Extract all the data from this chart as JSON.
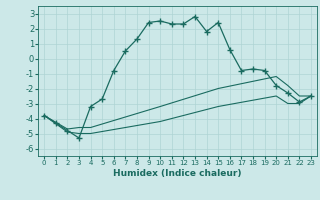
{
  "xlabel": "Humidex (Indice chaleur)",
  "ylabel": "",
  "background_color": "#cce8e8",
  "line_color": "#1a6b60",
  "xlim": [
    -0.5,
    23.5
  ],
  "ylim": [
    -6.5,
    3.5
  ],
  "xticks": [
    0,
    1,
    2,
    3,
    4,
    5,
    6,
    7,
    8,
    9,
    10,
    11,
    12,
    13,
    14,
    15,
    16,
    17,
    18,
    19,
    20,
    21,
    22,
    23
  ],
  "yticks": [
    -6,
    -5,
    -4,
    -3,
    -2,
    -1,
    0,
    1,
    2,
    3
  ],
  "series1_x": [
    0,
    1,
    2,
    3,
    4,
    5,
    6,
    7,
    8,
    9,
    10,
    11,
    12,
    13,
    14,
    15,
    16,
    17,
    18,
    19,
    20,
    21,
    22,
    23
  ],
  "series1_y": [
    -3.8,
    -4.3,
    -4.8,
    -5.3,
    -3.2,
    -2.7,
    -0.8,
    0.5,
    1.3,
    2.4,
    2.5,
    2.3,
    2.3,
    2.8,
    1.8,
    2.4,
    0.6,
    -0.8,
    -0.7,
    -0.8,
    -1.8,
    -2.3,
    -2.9,
    -2.5
  ],
  "series2_x": [
    0,
    2,
    3,
    4,
    10,
    15,
    20,
    21,
    22,
    23
  ],
  "series2_y": [
    -3.8,
    -4.7,
    -4.6,
    -4.6,
    -3.2,
    -2.0,
    -1.2,
    -1.8,
    -2.5,
    -2.5
  ],
  "series3_x": [
    0,
    2,
    3,
    4,
    10,
    15,
    20,
    21,
    22,
    23
  ],
  "series3_y": [
    -3.8,
    -4.9,
    -5.0,
    -5.0,
    -4.2,
    -3.2,
    -2.5,
    -3.0,
    -3.0,
    -2.5
  ],
  "grid_color": "#afd4d4",
  "marker": "+"
}
